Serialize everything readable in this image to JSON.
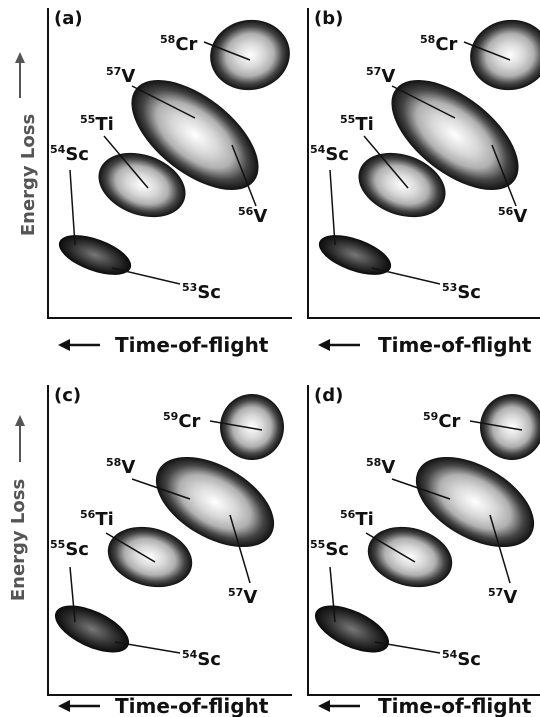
{
  "y_axis_label": "Energy Loss",
  "x_axis_label": "Time-of-flight",
  "panels": [
    {
      "label": "(a)",
      "isotopes": [
        {
          "mass": "58",
          "element": "Cr"
        },
        {
          "mass": "57",
          "element": "V"
        },
        {
          "mass": "55",
          "element": "Ti"
        },
        {
          "mass": "54",
          "element": "Sc"
        },
        {
          "mass": "56",
          "element": "V"
        },
        {
          "mass": "53",
          "element": "Sc"
        }
      ]
    },
    {
      "label": "(b)",
      "isotopes": [
        {
          "mass": "58",
          "element": "Cr"
        },
        {
          "mass": "57",
          "element": "V"
        },
        {
          "mass": "55",
          "element": "Ti"
        },
        {
          "mass": "54",
          "element": "Sc"
        },
        {
          "mass": "56",
          "element": "V"
        },
        {
          "mass": "53",
          "element": "Sc"
        }
      ]
    },
    {
      "label": "(c)",
      "isotopes": [
        {
          "mass": "59",
          "element": "Cr"
        },
        {
          "mass": "58",
          "element": "V"
        },
        {
          "mass": "56",
          "element": "Ti"
        },
        {
          "mass": "55",
          "element": "Sc"
        },
        {
          "mass": "57",
          "element": "V"
        },
        {
          "mass": "54",
          "element": "Sc"
        }
      ]
    },
    {
      "label": "(d)",
      "isotopes": [
        {
          "mass": "59",
          "element": "Cr"
        },
        {
          "mass": "58",
          "element": "V"
        },
        {
          "mass": "56",
          "element": "Ti"
        },
        {
          "mass": "55",
          "element": "Sc"
        },
        {
          "mass": "57",
          "element": "V"
        },
        {
          "mass": "54",
          "element": "Sc"
        }
      ]
    }
  ]
}
